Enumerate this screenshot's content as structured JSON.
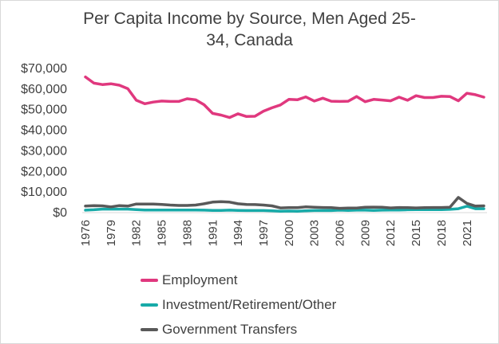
{
  "chart_data": {
    "type": "line",
    "title_lines": [
      "Per Capita Income by Source, Men Aged 25-",
      "34, Canada"
    ],
    "x": [
      1976,
      1977,
      1978,
      1979,
      1980,
      1981,
      1982,
      1983,
      1984,
      1985,
      1986,
      1987,
      1988,
      1989,
      1990,
      1991,
      1992,
      1993,
      1994,
      1995,
      1996,
      1997,
      1998,
      1999,
      2000,
      2001,
      2002,
      2003,
      2004,
      2005,
      2006,
      2007,
      2008,
      2009,
      2010,
      2011,
      2012,
      2013,
      2014,
      2015,
      2016,
      2017,
      2018,
      2019,
      2020,
      2021,
      2022,
      2023
    ],
    "x_tick_labels": [
      "1976",
      "1979",
      "1982",
      "1985",
      "1988",
      "1991",
      "1994",
      "1997",
      "2000",
      "2003",
      "2006",
      "2009",
      "2012",
      "2015",
      "2018",
      "2021"
    ],
    "y_tick_labels": [
      "$0",
      "$10,000",
      "$20,000",
      "$30,000",
      "$40,000",
      "$50,000",
      "$60,000",
      "$70,000"
    ],
    "ylim": [
      0,
      70000
    ],
    "series": [
      {
        "name": "Employment",
        "color": "#e0387e",
        "values": [
          65500,
          62500,
          61800,
          62200,
          61500,
          59800,
          54200,
          52500,
          53300,
          53800,
          53600,
          53600,
          54900,
          54400,
          52000,
          47800,
          47000,
          45800,
          47600,
          46300,
          46400,
          48900,
          50500,
          51900,
          54600,
          54400,
          55800,
          53800,
          55200,
          53700,
          53600,
          53700,
          56000,
          53500,
          54600,
          54300,
          53900,
          55700,
          54200,
          56400,
          55500,
          55500,
          56100,
          56000,
          53900,
          57600,
          56900,
          55700
        ]
      },
      {
        "name": "Investment/Retirement/Other",
        "color": "#17aaa8",
        "values": [
          800,
          1000,
          1300,
          1300,
          1300,
          1300,
          1100,
          900,
          900,
          900,
          900,
          900,
          900,
          900,
          800,
          700,
          700,
          800,
          700,
          600,
          600,
          600,
          500,
          300,
          400,
          300,
          500,
          600,
          600,
          600,
          800,
          700,
          800,
          800,
          700,
          800,
          900,
          900,
          1000,
          1100,
          1100,
          1100,
          1100,
          1200,
          1500,
          2700,
          1500,
          1500
        ]
      },
      {
        "name": "Government Transfers",
        "color": "#595959",
        "values": [
          2800,
          3000,
          2900,
          2400,
          3000,
          2800,
          3800,
          3800,
          3800,
          3600,
          3300,
          3100,
          3100,
          3300,
          3900,
          4700,
          4900,
          4700,
          3900,
          3600,
          3500,
          3300,
          2900,
          1900,
          2000,
          2000,
          2400,
          2200,
          2100,
          2000,
          1700,
          1800,
          1800,
          2200,
          2300,
          2200,
          1900,
          2100,
          2000,
          1900,
          2000,
          2100,
          2100,
          2200,
          7000,
          4100,
          2800,
          2900
        ]
      }
    ],
    "legend_position": "bottom",
    "grid": false
  }
}
